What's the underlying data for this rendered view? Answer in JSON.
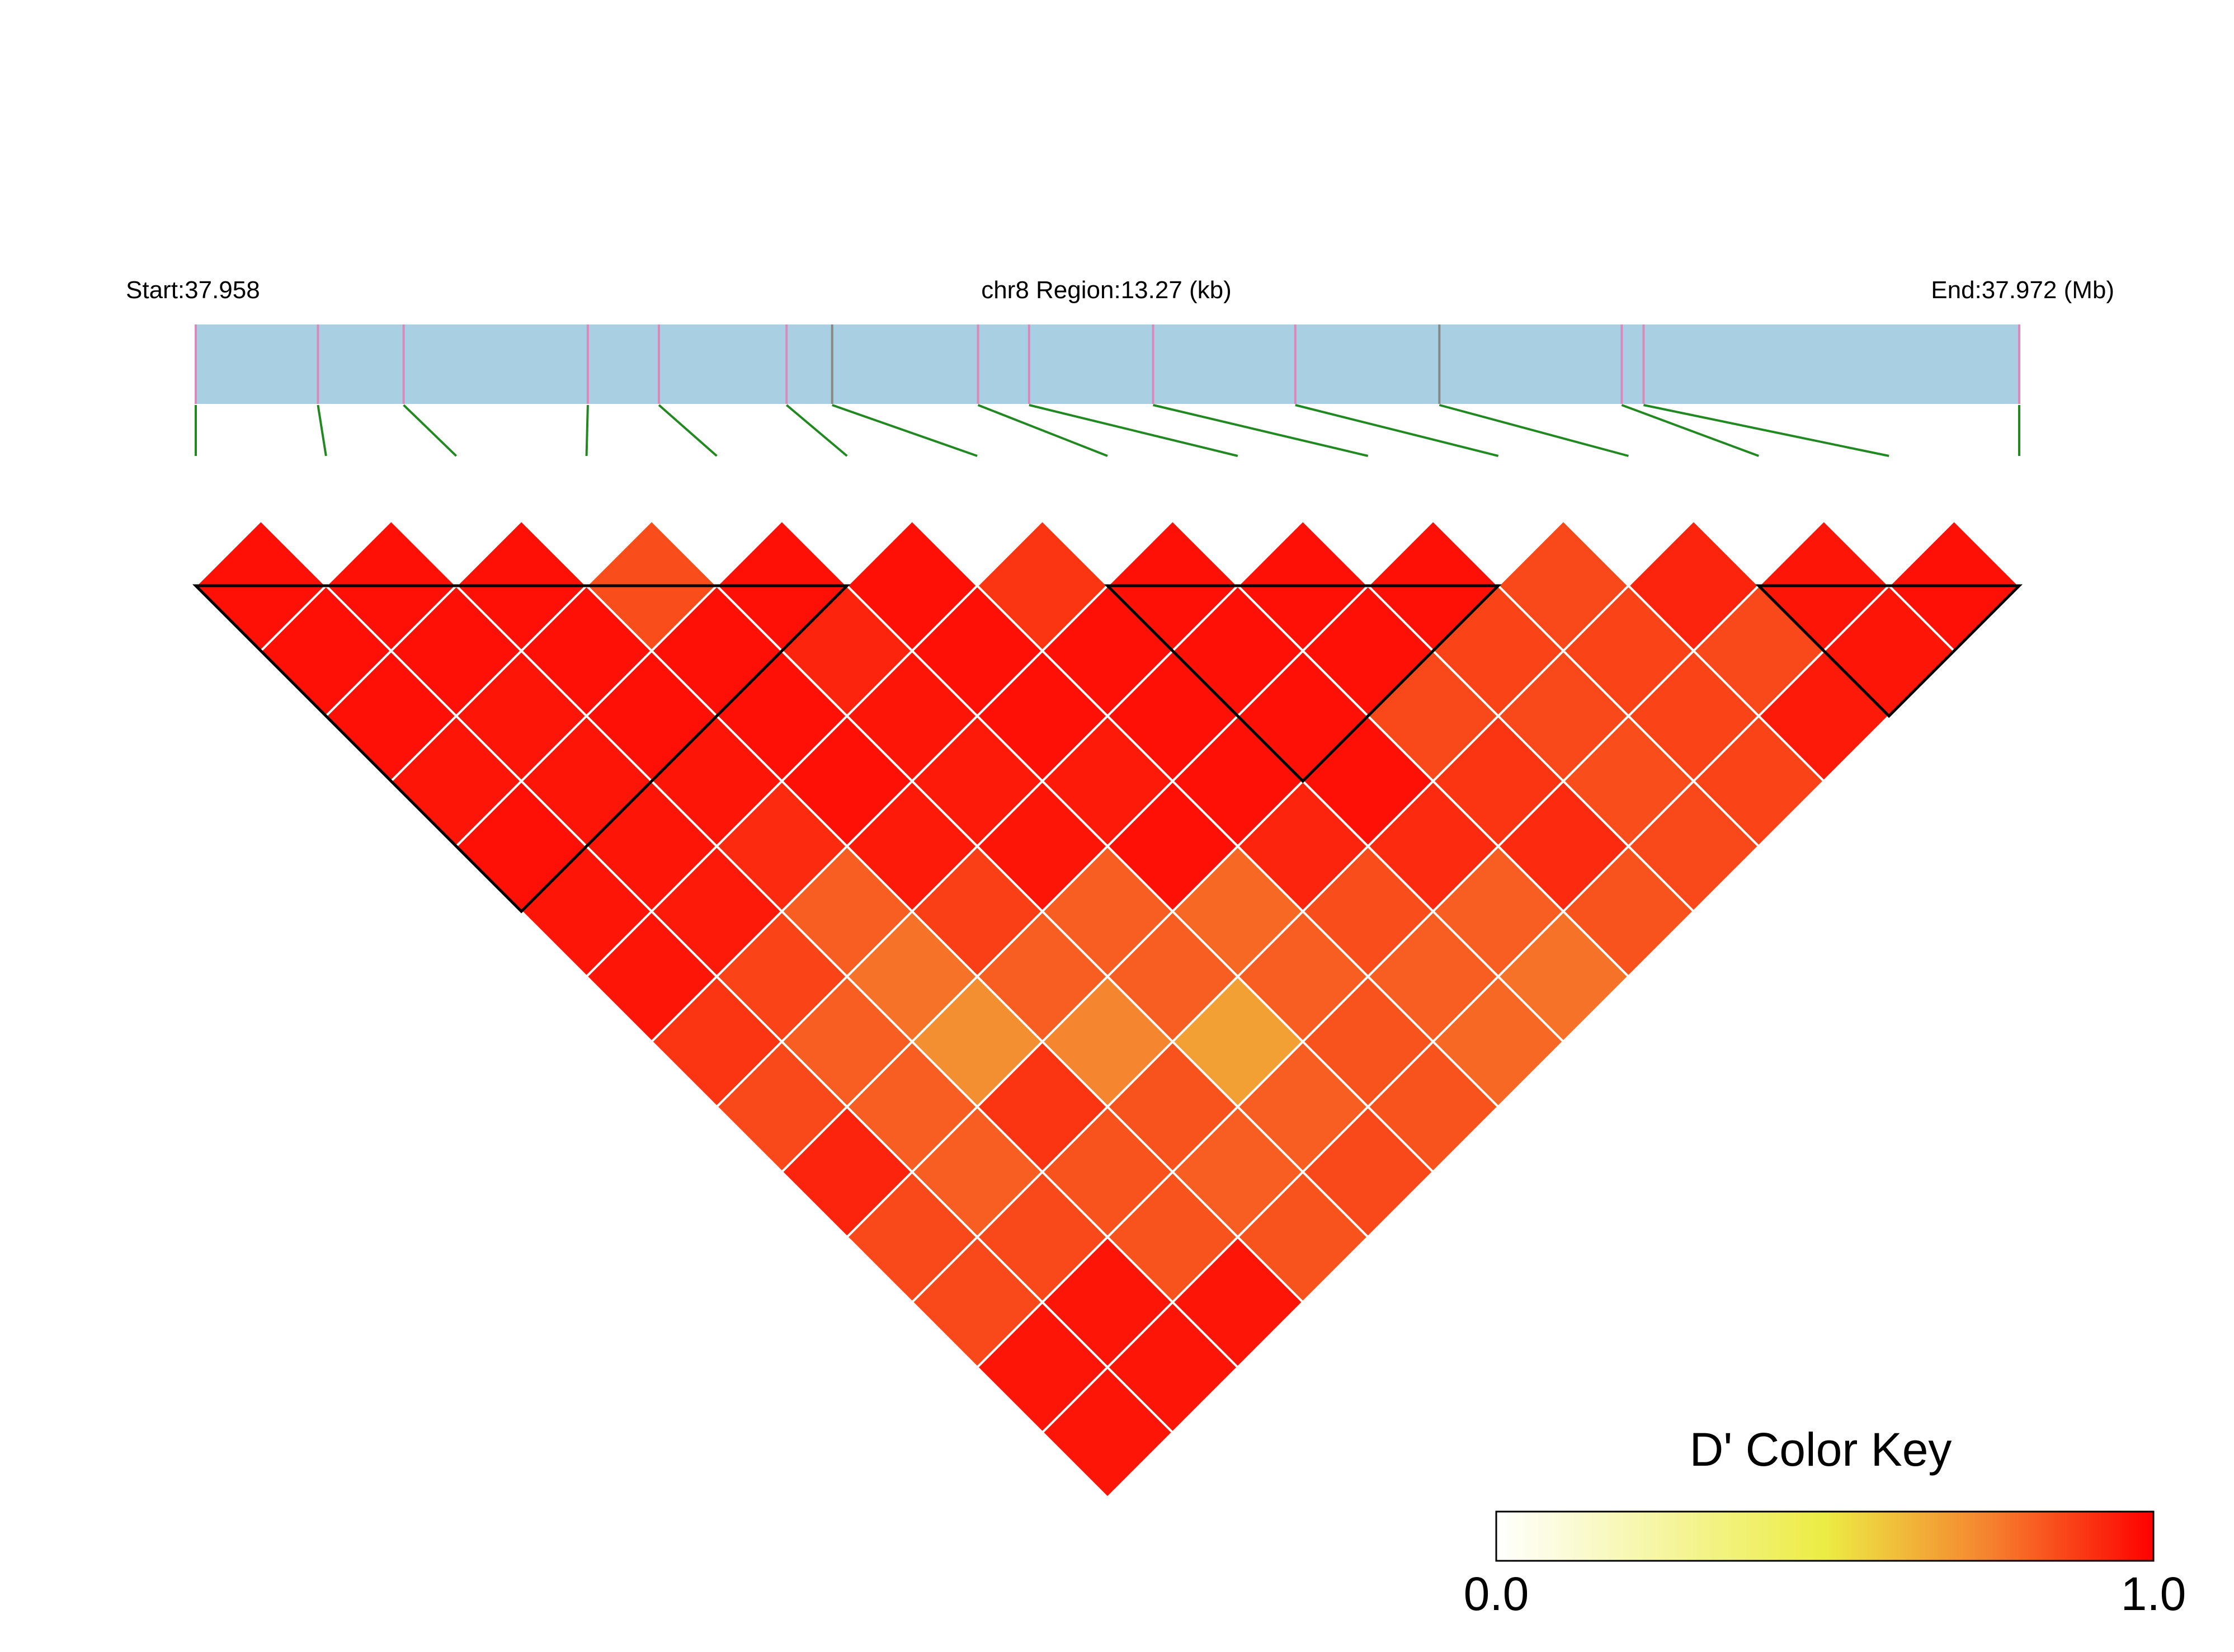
{
  "chart_data": {
    "type": "heatmap",
    "subtype": "linkage-disequilibrium triangle",
    "header": {
      "start_label": "Start:37.958",
      "region_label": "chr8 Region:13.27 (kb)",
      "end_label": "End:37.972 (Mb)"
    },
    "region": {
      "chromosome": "chr8",
      "start_mb": 37.958,
      "end_mb": 37.972,
      "length_kb": 13.27
    },
    "snp_count": 15,
    "snp_positions_fraction": [
      0,
      0.067,
      0.114,
      0.215,
      0.254,
      0.324,
      0.349,
      0.429,
      0.457,
      0.525,
      0.603,
      0.682,
      0.782,
      0.794,
      1
    ],
    "snp_marker_colors": [
      "#dd88bb",
      "#dd88bb",
      "#dd88bb",
      "#dd88bb",
      "#dd88bb",
      "#dd88bb",
      "#888888",
      "#dd88bb",
      "#dd88bb",
      "#dd88bb",
      "#dd88bb",
      "#888888",
      "#dd88bb",
      "#dd88bb",
      "#dd88bb"
    ],
    "d_prime_matrix_upper": [
      [
        0.97,
        0.97,
        0.97,
        0.96,
        0.97,
        0.96,
        0.96,
        0.9,
        0.86,
        0.93,
        0.86,
        0.86,
        0.96,
        0.96
      ],
      [
        0.97,
        0.97,
        0.96,
        0.96,
        0.96,
        0.95,
        0.87,
        0.82,
        0.82,
        0.82,
        0.86,
        0.96,
        0.96
      ],
      [
        0.97,
        0.97,
        0.97,
        0.96,
        0.92,
        0.82,
        0.78,
        0.72,
        0.9,
        0.84,
        0.84,
        0.96
      ],
      [
        0.85,
        0.97,
        0.97,
        0.97,
        0.95,
        0.88,
        0.82,
        0.74,
        0.84,
        0.82,
        0.84
      ],
      [
        0.97,
        0.93,
        0.96,
        0.95,
        0.96,
        0.82,
        0.82,
        0.68,
        0.82,
        0.86
      ],
      [
        0.97,
        0.97,
        0.97,
        0.95,
        0.97,
        0.8,
        0.82,
        0.84,
        0.84
      ],
      [
        0.9,
        0.97,
        0.97,
        0.97,
        0.93,
        0.85,
        0.82,
        0.8
      ],
      [
        0.97,
        0.97,
        0.97,
        0.97,
        0.92,
        0.82,
        0.78
      ],
      [
        0.97,
        0.97,
        0.86,
        0.9,
        0.92,
        0.84
      ],
      [
        0.97,
        0.87,
        0.86,
        0.85,
        0.86
      ],
      [
        0.86,
        0.87,
        0.87,
        0.87
      ],
      [
        0.93,
        0.86,
        0.95
      ],
      [
        0.96,
        0.96
      ],
      [
        0.97
      ]
    ],
    "ld_blocks": [
      [
        1,
        6
      ],
      [
        8,
        11
      ],
      [
        13,
        15
      ]
    ],
    "legend": {
      "title": "D' Color Key",
      "min_label": "0.0",
      "max_label": "1.0",
      "range": [
        0,
        1
      ],
      "color_stops": [
        {
          "value": 0.0,
          "color": "#ffffff"
        },
        {
          "value": 0.5,
          "color": "#ecec44"
        },
        {
          "value": 0.75,
          "color": "#f5822e"
        },
        {
          "value": 1.0,
          "color": "#ff0000"
        }
      ],
      "placement": "bottom-right"
    },
    "colors": {
      "gene_bar": "#a8cfe2",
      "connector_line": "#228822",
      "cell_border": "#ffffff",
      "block_outline": "#000000"
    }
  }
}
